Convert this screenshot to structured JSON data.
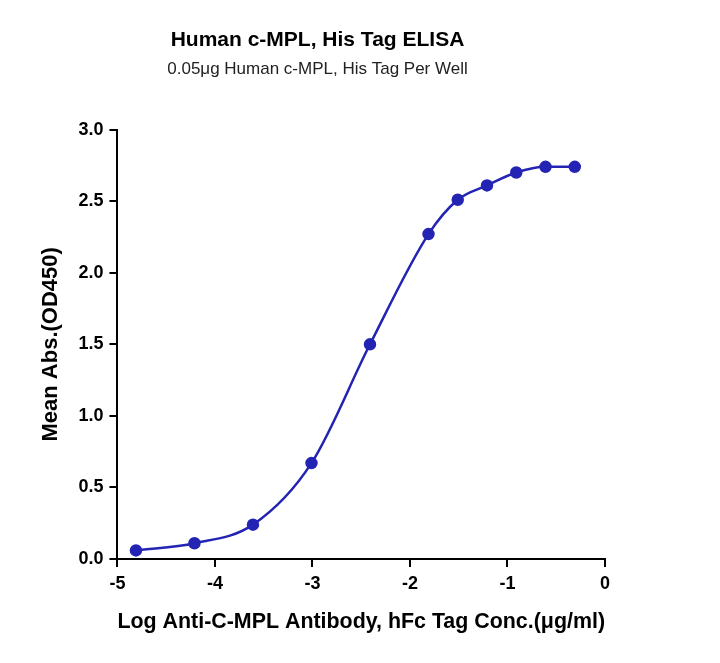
{
  "chart_data": {
    "type": "line",
    "title": "Human c-MPL, His Tag ELISA",
    "subtitle": "0.05μg Human c-MPL, His Tag Per Well",
    "x_label": "Log Anti-C-MPL Antibody, hFc Tag Conc.(μg/ml)",
    "y_label": "Mean Abs.(OD450)",
    "x": [
      -4.81,
      -4.21,
      -3.61,
      -3.01,
      -2.41,
      -1.81,
      -1.51,
      -1.21,
      -0.91,
      -0.61,
      -0.31
    ],
    "values": [
      0.06,
      0.11,
      0.24,
      0.67,
      1.5,
      2.27,
      2.51,
      2.61,
      2.7,
      2.74,
      2.74
    ],
    "color": "#2424b4",
    "marker": "circle",
    "line_style": "solid",
    "xlim": [
      -5,
      0
    ],
    "xticks": [
      -5,
      -4,
      -3,
      -2,
      -1,
      0
    ],
    "ylim": [
      0,
      3
    ],
    "yticks": [
      {
        "value": 0,
        "label": "0.0"
      },
      0.5,
      {
        "value": 1,
        "label": "1.0"
      },
      1.5,
      {
        "value": 2,
        "label": "2.0"
      },
      2.5,
      {
        "value": 3,
        "label": "3.0"
      }
    ],
    "grid": false
  }
}
